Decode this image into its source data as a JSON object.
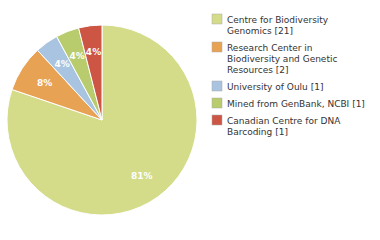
{
  "chart_data": {
    "type": "pie",
    "categories": [
      "Centre for Biodiversity\nGenomics [21]",
      "Research Center in\nBiodiversity and Genetic\nResources [2]",
      "University of Oulu [1]",
      "Mined from GenBank, NCBI [1]",
      "Canadian Centre for DNA\nBarcoding [1]"
    ],
    "values": [
      81,
      8,
      4,
      4,
      4
    ],
    "value_labels": [
      "81%",
      "8%",
      "4%",
      "4%",
      "4%"
    ],
    "colors": [
      "#d4dc8a",
      "#e8a254",
      "#a8c4e0",
      "#b8cc6e",
      "#cc5544"
    ],
    "data_labels": true,
    "legend": "right"
  }
}
